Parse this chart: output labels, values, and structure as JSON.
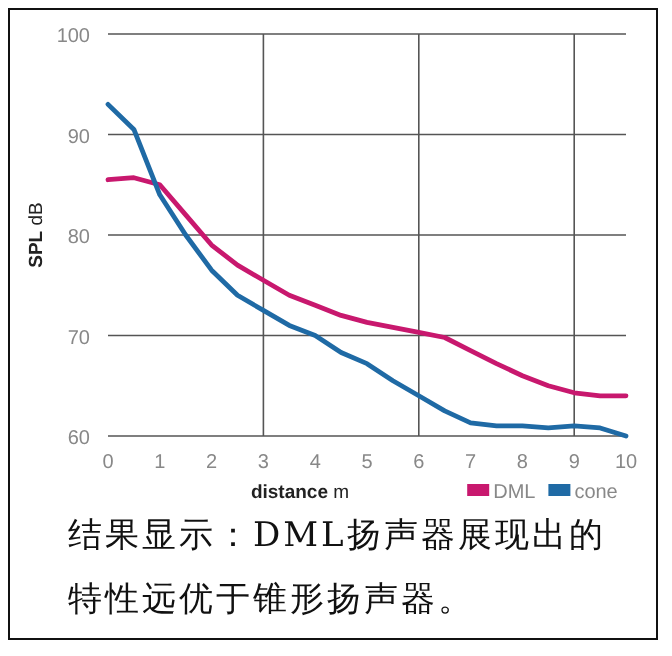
{
  "chart_data": {
    "type": "line",
    "xlabel": "**distance** m",
    "ylabel": "**SPL** dB",
    "x": [
      0,
      0.5,
      1,
      1.5,
      2,
      2.5,
      3,
      3.5,
      4,
      4.5,
      5,
      5.5,
      6,
      6.5,
      7,
      7.5,
      8,
      8.5,
      9,
      9.5,
      10
    ],
    "series": [
      {
        "name": "DML",
        "color": "#c8186e",
        "values": [
          85.5,
          85.7,
          85,
          82,
          79,
          77,
          75.5,
          74,
          73,
          72,
          71.3,
          70.8,
          70.3,
          69.8,
          68.5,
          67.2,
          66,
          65,
          64.3,
          64,
          64
        ]
      },
      {
        "name": "cone",
        "color": "#1f6aa5",
        "values": [
          93,
          90.5,
          84,
          80,
          76.5,
          74,
          72.5,
          71,
          70,
          68.3,
          67.2,
          65.5,
          64,
          62.5,
          61.3,
          61,
          61,
          60.8,
          61,
          60.8,
          60
        ]
      }
    ],
    "xlim": [
      0,
      10
    ],
    "xticks": [
      0,
      1,
      2,
      3,
      4,
      5,
      6,
      7,
      8,
      9,
      10
    ],
    "ylim": [
      60,
      100
    ],
    "yticks": [
      60,
      70,
      80,
      90,
      100
    ],
    "grid": "y",
    "ref_lines": [
      {
        "axis": "x",
        "value": 3,
        "color": "#555555"
      },
      {
        "axis": "x",
        "value": 6,
        "color": "#555555"
      },
      {
        "axis": "x",
        "value": 9,
        "color": "#555555"
      }
    ],
    "legend": "bottom right",
    "marker": "none",
    "line_style": "solid",
    "annotations": [
      "结果显示：DML扬声器展现出的特性远优于锥形扬声器。"
    ]
  }
}
